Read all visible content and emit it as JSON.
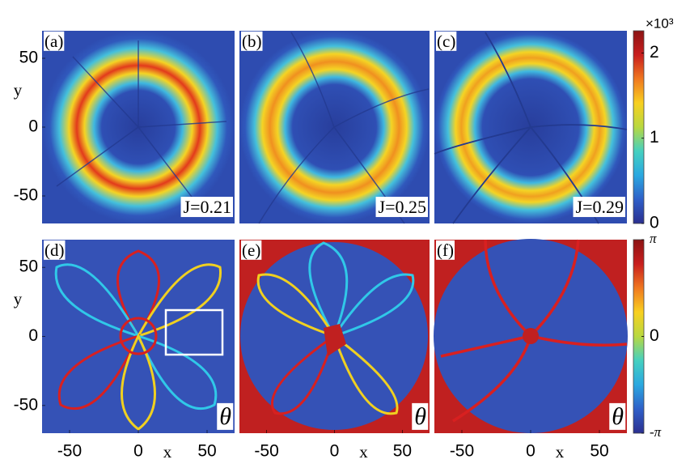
{
  "chart_data": [
    {
      "type": "heatmap",
      "panel": "(a)",
      "annotation": "J=0.21",
      "ylabel": "y",
      "ylim": [
        -70,
        70
      ],
      "yticks": [
        -50,
        0,
        50
      ]
    },
    {
      "type": "heatmap",
      "panel": "(b)",
      "annotation": "J=0.25"
    },
    {
      "type": "heatmap",
      "panel": "(c)",
      "annotation": "J=0.29"
    },
    {
      "type": "heatmap",
      "panel": "(d)",
      "annotation": "θ",
      "ylabel": "y",
      "xlabel": "x",
      "xlim": [
        -70,
        70
      ],
      "ylim": [
        -70,
        70
      ],
      "xticks": [
        -50,
        0,
        50
      ],
      "yticks": [
        -50,
        0,
        50
      ]
    },
    {
      "type": "heatmap",
      "panel": "(e)",
      "annotation": "θ",
      "xlabel": "x",
      "xlim": [
        -70,
        70
      ],
      "xticks": [
        -50,
        0,
        50
      ]
    },
    {
      "type": "heatmap",
      "panel": "(f)",
      "annotation": "θ",
      "xlabel": "x",
      "xlim": [
        -70,
        70
      ],
      "xticks": [
        -50,
        0,
        50
      ]
    },
    {
      "type": "colorbar",
      "multiplier": "×10³",
      "ylim": [
        0,
        2.26
      ],
      "yticks": [
        0,
        1,
        2
      ],
      "colormap": [
        "#2b2f8f",
        "#2f5fc8",
        "#2aa8e0",
        "#45d0c0",
        "#b8d840",
        "#f8d020",
        "#f07820",
        "#c81e1e",
        "#8c1414"
      ]
    },
    {
      "type": "colorbar",
      "ylim": [
        -3.1416,
        3.1416
      ],
      "yticks": [
        {
          "value": -3.1416,
          "label": "-π"
        },
        0,
        {
          "value": 3.1416,
          "label": "π"
        }
      ],
      "colormap": [
        "#2b2f8f",
        "#2f5fc8",
        "#2aa8e0",
        "#45d0c0",
        "#b8d840",
        "#f8d020",
        "#f07820",
        "#c81e1e",
        "#8c1414"
      ]
    }
  ]
}
